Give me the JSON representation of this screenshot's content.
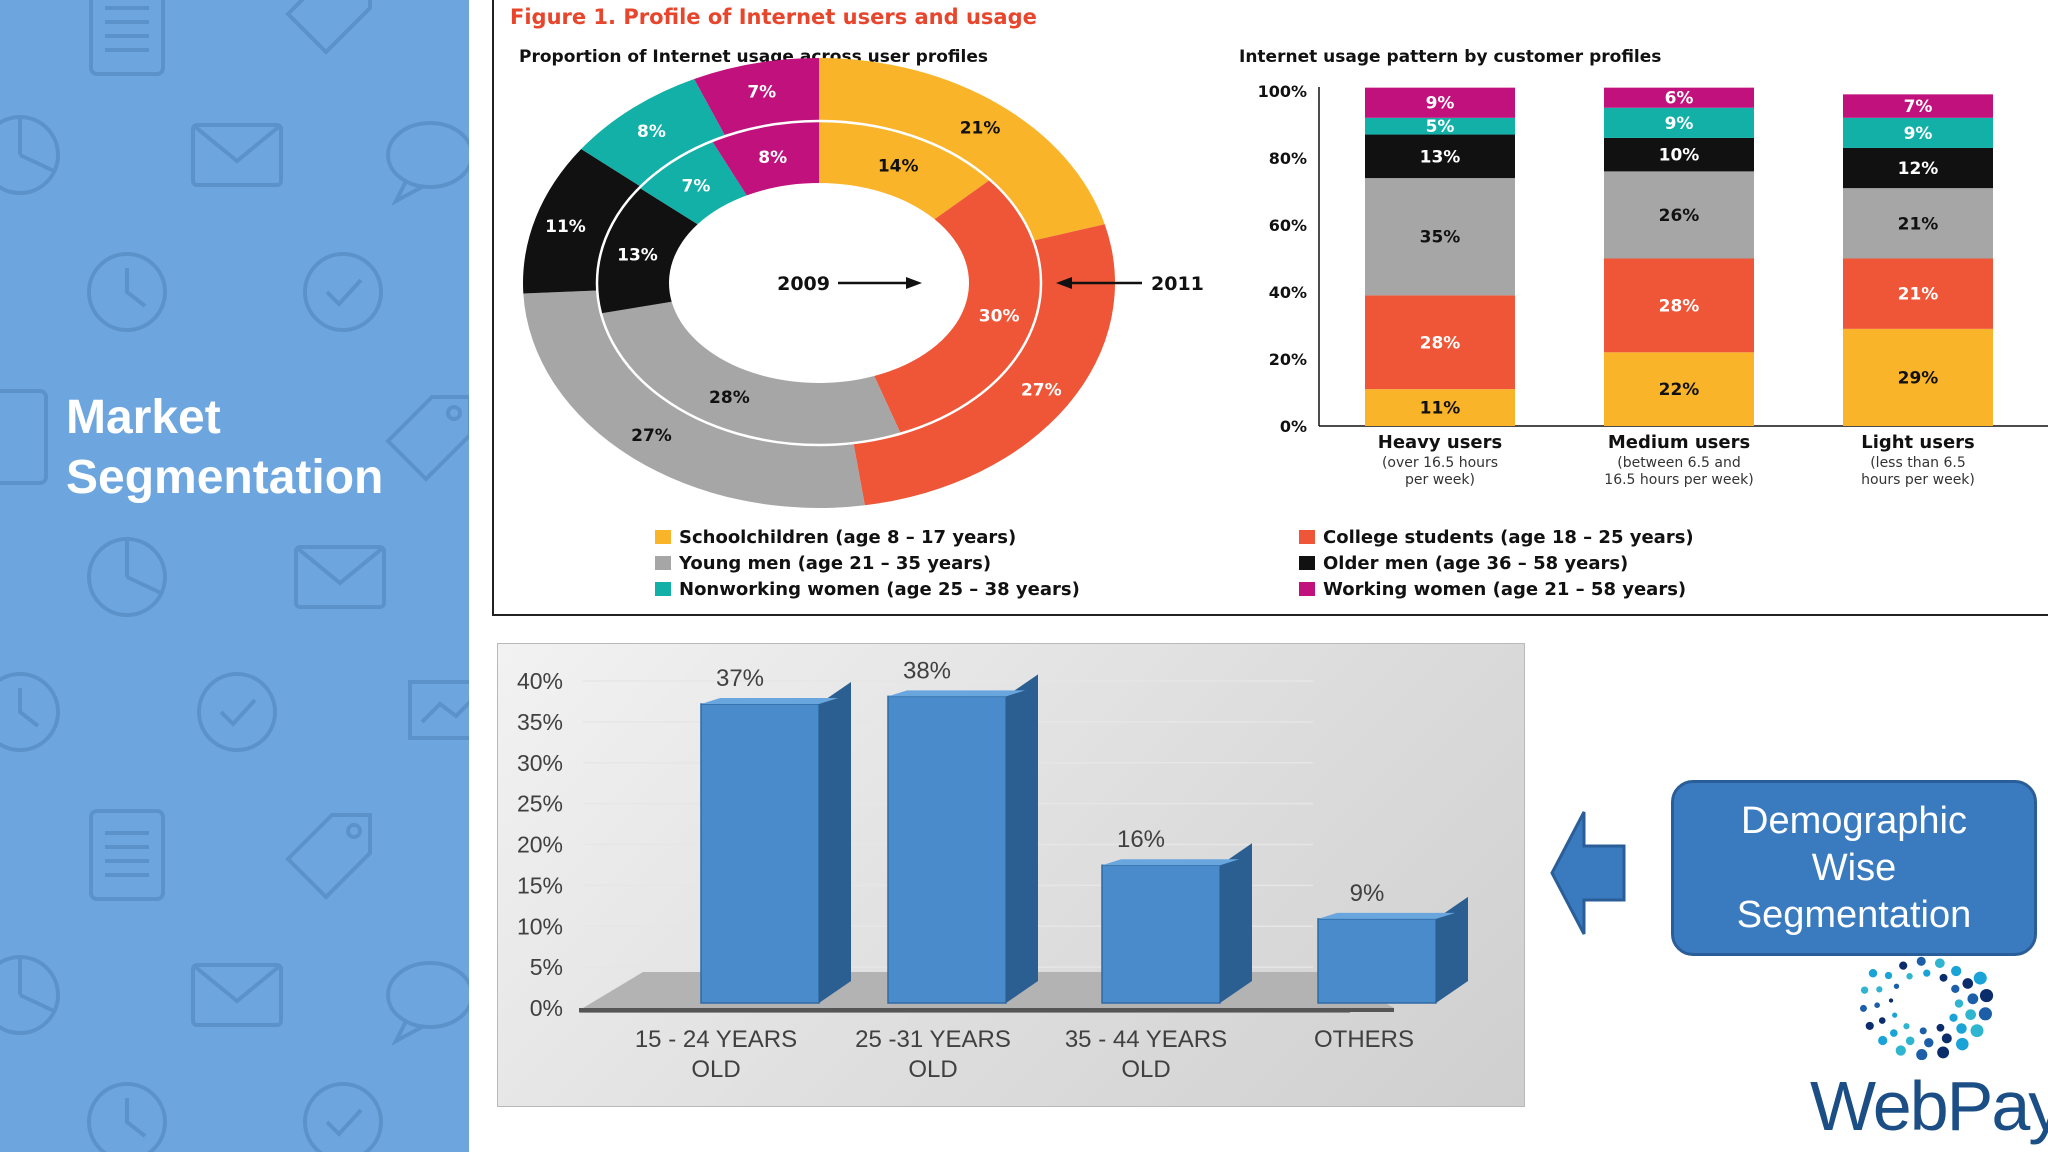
{
  "sidebar": {
    "title_line1": "Market",
    "title_line2": "Segmentation",
    "bg_color": "#6da6de"
  },
  "figure": {
    "caption": "Figure 1. Profile of Internet users and usage",
    "donut_title": "Proportion of Internet usage across user profiles",
    "stack_title": "Internet usage pattern by customer profiles",
    "inner_year": "2009",
    "outer_year": "2011"
  },
  "legend": [
    {
      "label": "Schoolchildren (age 8 – 17 years)",
      "color": "#f9b42a"
    },
    {
      "label": "Young men (age 21 – 35 years)",
      "color": "#a6a6a6"
    },
    {
      "label": "Nonworking women (age 25 – 38 years)",
      "color": "#12b0a7"
    },
    {
      "label": "College students (age 18 – 25 years)",
      "color": "#ef5537"
    },
    {
      "label": "Older men (age 36 – 58 years)",
      "color": "#111111"
    },
    {
      "label": "Working women (age 21 – 58 years)",
      "color": "#c1117d"
    }
  ],
  "chart_data": [
    {
      "type": "pie",
      "title": "Proportion of Internet usage across user profiles",
      "categories": [
        "Schoolchildren",
        "College students",
        "Young men",
        "Older men",
        "Nonworking women",
        "Working women"
      ],
      "colors": [
        "#f9b42a",
        "#ef5537",
        "#a6a6a6",
        "#111111",
        "#12b0a7",
        "#c1117d"
      ],
      "series": [
        {
          "name": "2009",
          "values": [
            14,
            30,
            28,
            13,
            7,
            8
          ],
          "labels": [
            "14%",
            "30%",
            "28%",
            "13%",
            "7%",
            "8%"
          ]
        },
        {
          "name": "2011",
          "values": [
            21,
            27,
            27,
            11,
            8,
            7
          ],
          "labels": [
            "21%",
            "27%",
            "27%",
            "11%",
            "8%",
            "7%"
          ]
        }
      ]
    },
    {
      "type": "bar",
      "stacked": true,
      "title": "Internet usage pattern by customer profiles",
      "categories": [
        "Heavy users",
        "Medium users",
        "Light users"
      ],
      "category_notes": [
        "(over 16.5 hours per week)",
        "(between 6.5 and 16.5 hours per week)",
        "(less than 6.5 hours per week)"
      ],
      "ylim": [
        0,
        100
      ],
      "yticks": [
        "0%",
        "20%",
        "40%",
        "60%",
        "80%",
        "100%"
      ],
      "series": [
        {
          "color": "#f9b42a",
          "values": [
            11,
            22,
            29
          ],
          "labels": [
            "11%",
            "22%",
            "29%"
          ]
        },
        {
          "color": "#ef5537",
          "values": [
            28,
            28,
            21
          ],
          "labels": [
            "28%",
            "28%",
            "21%"
          ]
        },
        {
          "color": "#a6a6a6",
          "values": [
            35,
            26,
            21
          ],
          "labels": [
            "35%",
            "26%",
            "21%"
          ]
        },
        {
          "color": "#111111",
          "values": [
            13,
            10,
            12
          ],
          "labels": [
            "13%",
            "10%",
            "12%"
          ]
        },
        {
          "color": "#12b0a7",
          "values": [
            5,
            9,
            9
          ],
          "labels": [
            "5%",
            "9%",
            "9%"
          ]
        },
        {
          "color": "#c1117d",
          "values": [
            9,
            6,
            7
          ],
          "labels": [
            "9%",
            "6%",
            "7%"
          ]
        }
      ]
    },
    {
      "type": "bar",
      "categories": [
        "15 - 24 YEARS OLD",
        "25 -31 YEARS OLD",
        "35 - 44 YEARS OLD",
        "OTHERS"
      ],
      "values": [
        37,
        38,
        16,
        9
      ],
      "labels": [
        "37%",
        "38%",
        "16%",
        "9%"
      ],
      "ylim": [
        0,
        40
      ],
      "yticks": [
        "0%",
        "5%",
        "10%",
        "15%",
        "20%",
        "25%",
        "30%",
        "35%",
        "40%"
      ],
      "bar_color": "#4a8ccb",
      "grid": true
    }
  ],
  "callout": {
    "text": "Demographic Wise Segmentation",
    "color": "#3a7bc0"
  },
  "logo": {
    "text": "WebPay"
  }
}
